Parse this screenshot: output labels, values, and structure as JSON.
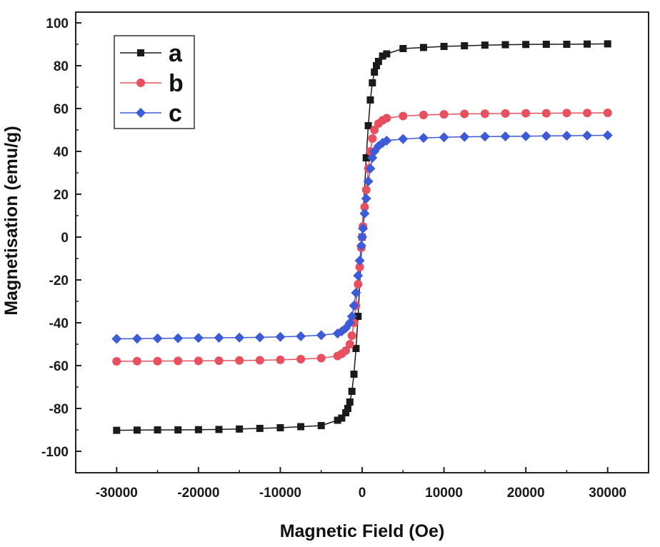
{
  "chart_data": {
    "type": "scatter",
    "xlabel": "Magnetic Field (Oe)",
    "ylabel": "Magnetisation (emu/g)",
    "xlim": [
      -35000,
      35000
    ],
    "ylim": [
      -110,
      105
    ],
    "xticks": [
      -30000,
      -20000,
      -10000,
      0,
      10000,
      20000,
      30000
    ],
    "yticks": [
      -100,
      -80,
      -60,
      -40,
      -20,
      0,
      20,
      40,
      60,
      80,
      100
    ],
    "grid": false,
    "legend_position": "top-left",
    "series": [
      {
        "name": "a",
        "color": "#1a1a1a",
        "marker": "square",
        "x": [
          -30000,
          -27500,
          -25000,
          -22500,
          -20000,
          -17500,
          -15000,
          -12500,
          -10000,
          -7500,
          -5000,
          -3000,
          -2500,
          -2000,
          -1750,
          -1500,
          -1250,
          -1000,
          -750,
          -500,
          0,
          500,
          750,
          1000,
          1250,
          1500,
          1750,
          2000,
          2500,
          3000,
          5000,
          7500,
          10000,
          12500,
          15000,
          17500,
          20000,
          22500,
          25000,
          27500,
          30000
        ],
        "y": [
          -90.2,
          -90.1,
          -90.0,
          -90.0,
          -89.9,
          -89.8,
          -89.6,
          -89.3,
          -89.0,
          -88.5,
          -88.0,
          -85.5,
          -84.5,
          -82.0,
          -80.0,
          -77.0,
          -72.0,
          -64.0,
          -52.0,
          -37.0,
          0,
          37.0,
          52.0,
          64.0,
          72.0,
          77.0,
          80.0,
          82.0,
          84.5,
          85.5,
          88.0,
          88.5,
          89.0,
          89.3,
          89.6,
          89.8,
          89.9,
          90.0,
          90.0,
          90.1,
          90.2
        ]
      },
      {
        "name": "b",
        "color": "#e8505f",
        "marker": "circle",
        "x": [
          -30000,
          -27500,
          -25000,
          -22500,
          -20000,
          -17500,
          -15000,
          -12500,
          -10000,
          -7500,
          -5000,
          -3000,
          -2500,
          -2000,
          -1500,
          -1250,
          -1000,
          -750,
          -500,
          -300,
          -100,
          0,
          100,
          300,
          500,
          750,
          1000,
          1250,
          1500,
          2000,
          2500,
          3000,
          5000,
          7500,
          10000,
          12500,
          15000,
          17500,
          20000,
          22500,
          25000,
          27500,
          30000
        ],
        "y": [
          -58.0,
          -57.9,
          -57.9,
          -57.8,
          -57.8,
          -57.7,
          -57.6,
          -57.5,
          -57.3,
          -57.0,
          -56.5,
          -55.5,
          -54.5,
          -53.0,
          -50.0,
          -46.0,
          -40.0,
          -32.0,
          -22.0,
          -14.0,
          -5.0,
          0,
          5.0,
          14.0,
          22.0,
          32.0,
          40.0,
          46.0,
          50.0,
          53.0,
          54.5,
          55.5,
          56.5,
          57.0,
          57.3,
          57.5,
          57.6,
          57.7,
          57.8,
          57.8,
          57.9,
          57.9,
          58.0
        ]
      },
      {
        "name": "c",
        "color": "#3d5bd9",
        "marker": "diamond",
        "x": [
          -30000,
          -27500,
          -25000,
          -22500,
          -20000,
          -17500,
          -15000,
          -12500,
          -10000,
          -7500,
          -5000,
          -3000,
          -2500,
          -2000,
          -1500,
          -1250,
          -1000,
          -750,
          -500,
          -300,
          -100,
          0,
          100,
          300,
          500,
          750,
          1000,
          1250,
          1500,
          2000,
          2500,
          3000,
          5000,
          7500,
          10000,
          12500,
          15000,
          17500,
          20000,
          22500,
          25000,
          27500,
          30000
        ],
        "y": [
          -47.5,
          -47.4,
          -47.3,
          -47.2,
          -47.1,
          -47.0,
          -46.9,
          -46.8,
          -46.6,
          -46.3,
          -45.8,
          -45.0,
          -44.0,
          -42.5,
          -40.0,
          -37.0,
          -32.0,
          -26.0,
          -18.0,
          -11.0,
          -4.0,
          0,
          4.0,
          11.0,
          18.0,
          26.0,
          32.0,
          37.0,
          40.0,
          42.5,
          44.0,
          45.0,
          45.8,
          46.3,
          46.6,
          46.8,
          46.9,
          47.0,
          47.1,
          47.2,
          47.3,
          47.4,
          47.5
        ]
      }
    ]
  }
}
